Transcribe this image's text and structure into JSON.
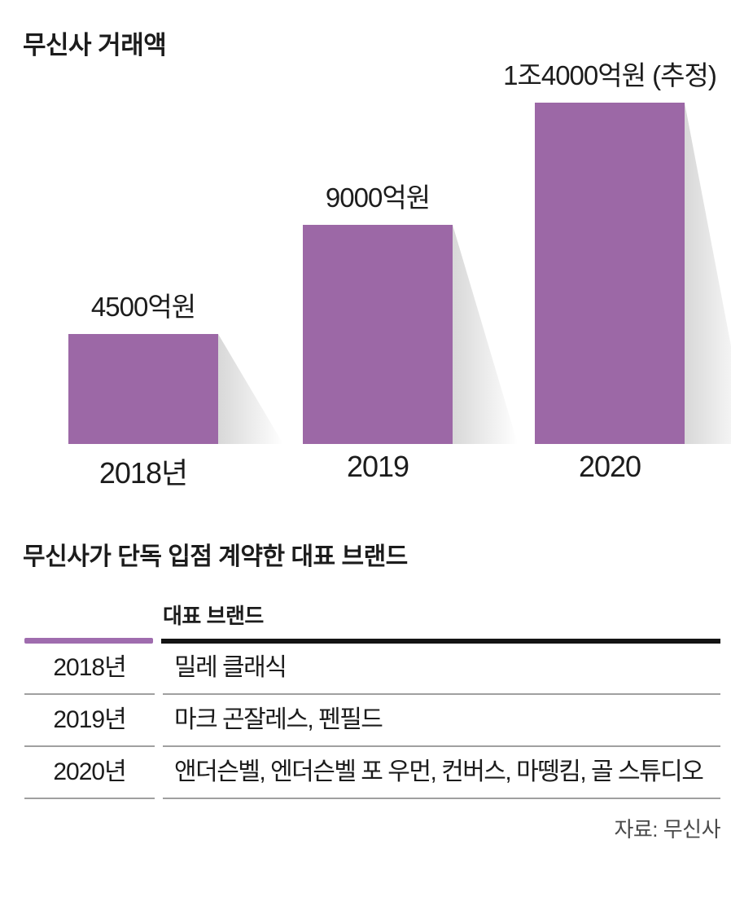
{
  "chart": {
    "title": "무신사 거래액"
  },
  "chart_data": {
    "type": "bar",
    "title": "무신사 거래액",
    "categories": [
      "2018년",
      "2019",
      "2020"
    ],
    "values": [
      4500,
      9000,
      14000
    ],
    "value_labels": [
      "4500억원",
      "9000억원",
      "1조4000억원 (추정)"
    ],
    "ylim": [
      0,
      14000
    ],
    "bar_color": "#9c68a6",
    "grid": false,
    "legend": false
  },
  "table": {
    "title": "무신사가 단독 입점 계약한 대표 브랜드",
    "column_header": "대표 브랜드",
    "rows": [
      {
        "year": "2018년",
        "brands": "밀레 클래식"
      },
      {
        "year": "2019년",
        "brands": "마크 곤잘레스, 펜필드"
      },
      {
        "year": "2020년",
        "brands": "앤더슨벨, 엔더슨벨 포 우먼, 컨버스, 마뗑킴, 골 스튜디오"
      }
    ]
  },
  "source": {
    "label": "자료: 무신사"
  },
  "colors": {
    "bar": "#9c68a6",
    "rule_purple": "#9f6cae",
    "rule_black": "#141414",
    "divider": "#a0a0a0",
    "text": "#1c1c1c",
    "source_text": "#4a4a4a"
  }
}
